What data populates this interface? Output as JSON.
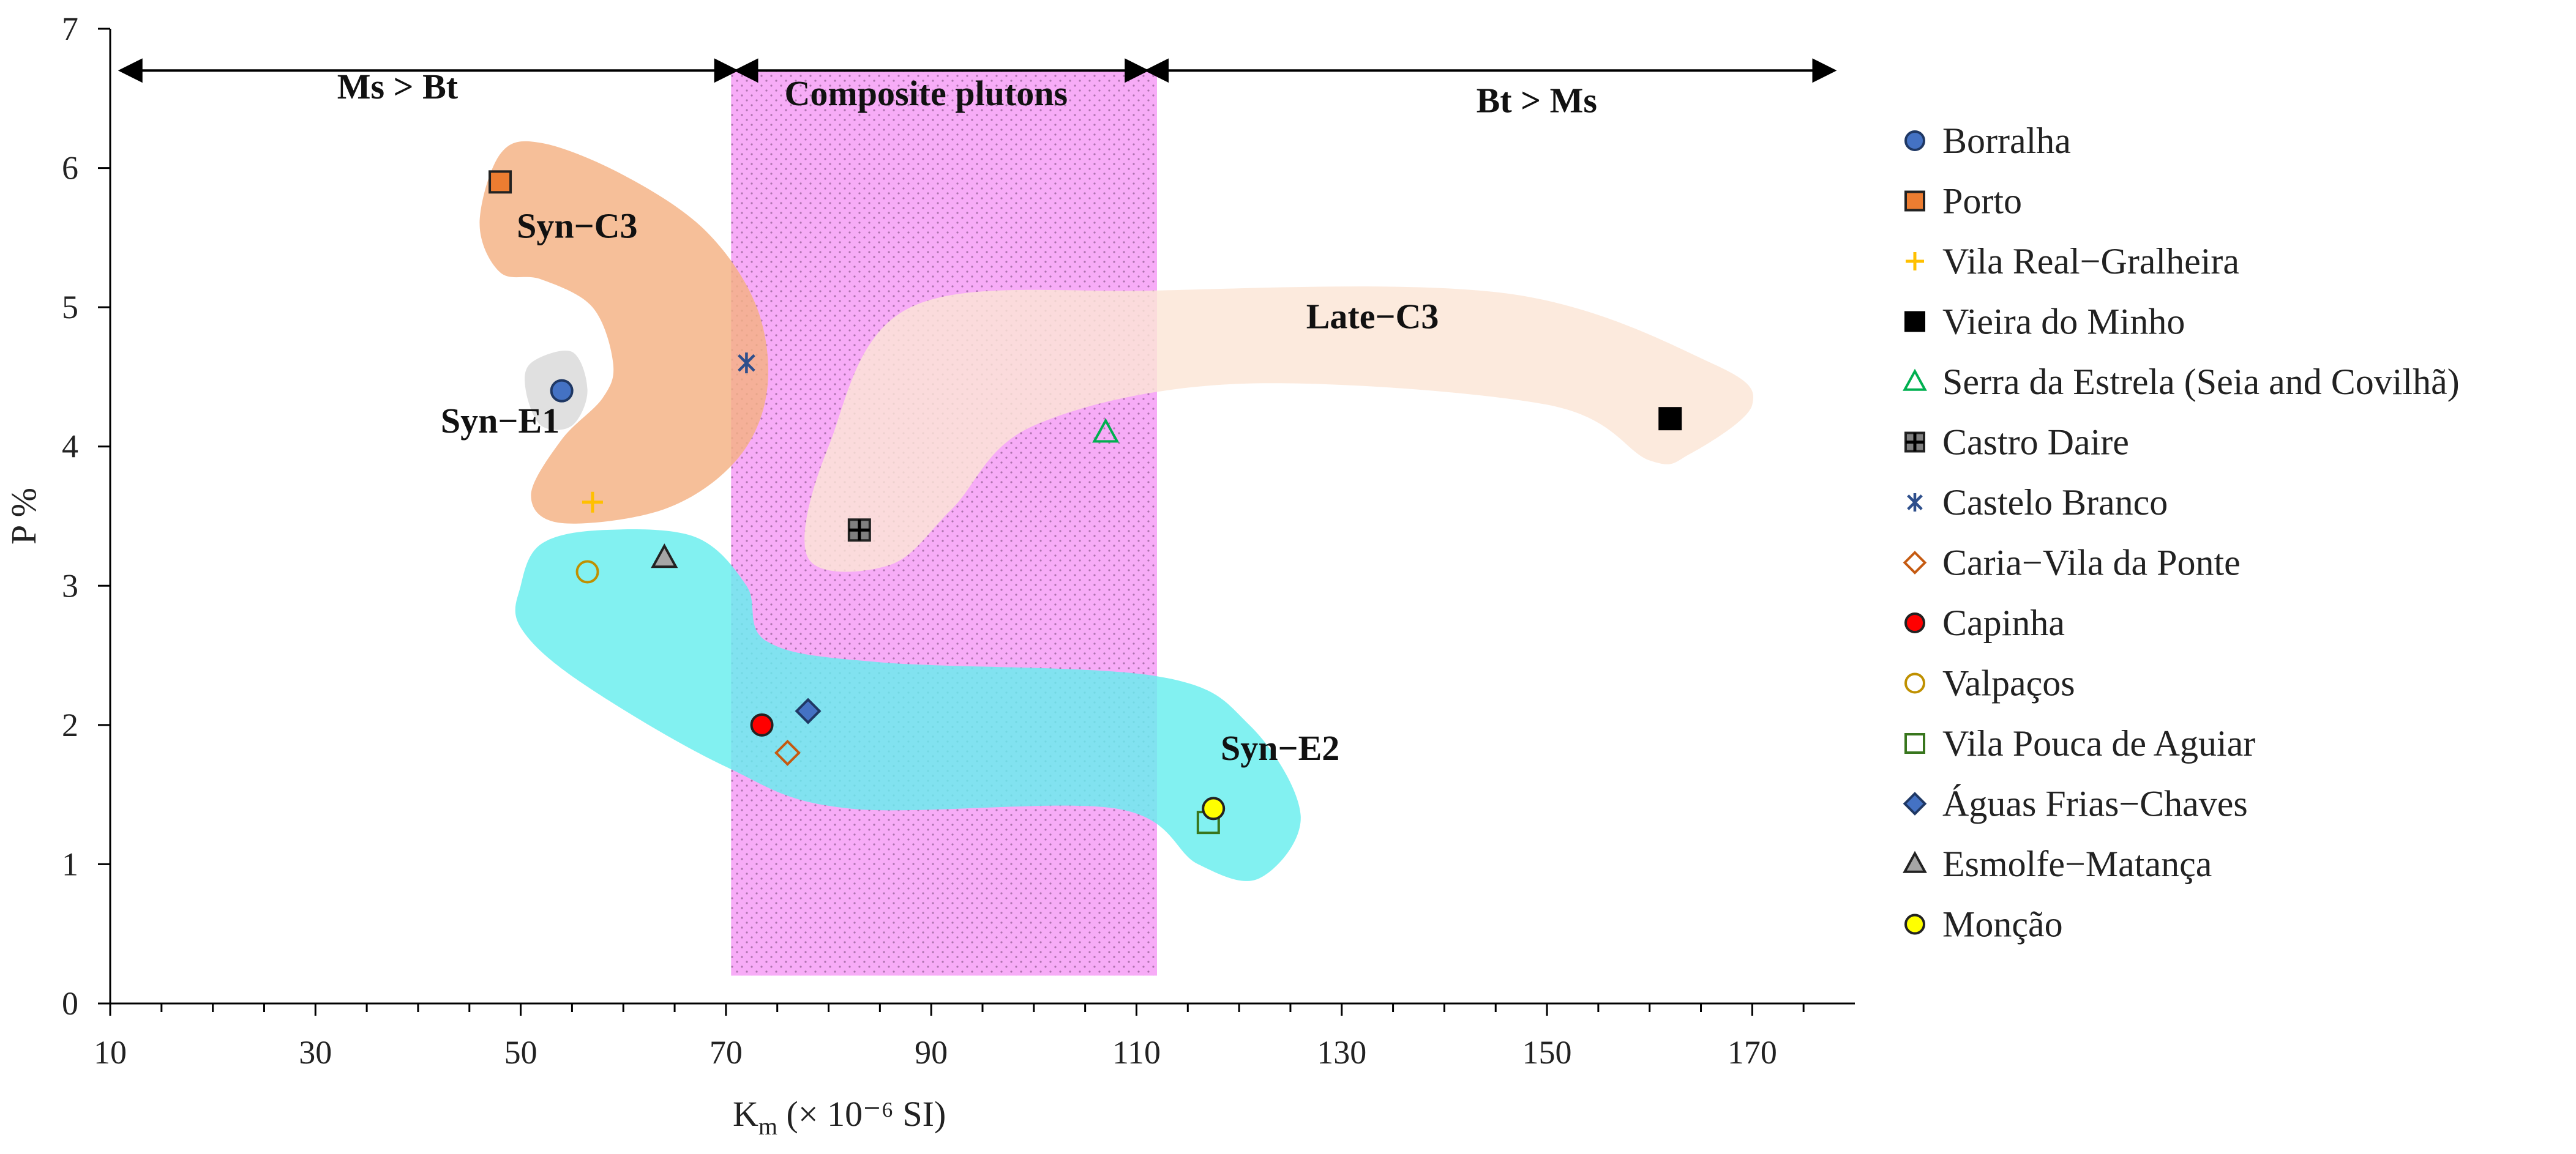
{
  "chart_data": {
    "type": "scatter",
    "title": "",
    "xlabel": {
      "main": "K",
      "sub": "m",
      "rest": " (× 10⁻⁶ SI)"
    },
    "ylabel": "P %",
    "xlim": [
      10,
      180
    ],
    "ylim": [
      0,
      7
    ],
    "x_ticks": [
      10,
      30,
      50,
      70,
      90,
      110,
      130,
      150,
      170
    ],
    "y_ticks": [
      0,
      1,
      2,
      3,
      4,
      5,
      6,
      7
    ],
    "grid": false,
    "legend_position": "right",
    "range_annotations": [
      {
        "label": "Ms > Bt",
        "from": 11,
        "to": 71,
        "label_x": 38,
        "label_y": 6.5
      },
      {
        "label": "Composite plutons",
        "from": 71,
        "to": 111,
        "label_x": 89.5,
        "label_y": 6.45
      },
      {
        "label": "Bt > Ms",
        "from": 111,
        "to": 178,
        "label_x": 149,
        "label_y": 6.4
      }
    ],
    "band": {
      "label": "Composite plutons",
      "from": 70.5,
      "to": 112,
      "ymin": 0.2,
      "ymax": 6.7,
      "color": "#f5a9f5"
    },
    "regions": [
      {
        "name": "Syn−C3",
        "label_x": 55.5,
        "label_y": 5.5,
        "color": "#f4b183",
        "outline": [
          [
            46,
            5.6
          ],
          [
            48,
            6.1
          ],
          [
            52,
            6.18
          ],
          [
            60,
            5.95
          ],
          [
            68,
            5.55
          ],
          [
            73,
            5.0
          ],
          [
            74,
            4.4
          ],
          [
            71,
            3.9
          ],
          [
            64,
            3.55
          ],
          [
            54,
            3.45
          ],
          [
            51,
            3.65
          ],
          [
            54,
            4.05
          ],
          [
            58,
            4.35
          ],
          [
            59,
            4.6
          ],
          [
            57,
            5.0
          ],
          [
            52,
            5.2
          ],
          [
            48,
            5.25
          ]
        ]
      },
      {
        "name": "Syn−E1",
        "label_x": 48,
        "label_y": 4.1,
        "color": "#d9d9d9",
        "outline": [
          [
            51,
            4.6
          ],
          [
            55,
            4.68
          ],
          [
            56.5,
            4.4
          ],
          [
            55,
            4.15
          ],
          [
            52,
            4.15
          ],
          [
            50.5,
            4.4
          ]
        ]
      },
      {
        "name": "Late−C3",
        "label_x": 133,
        "label_y": 4.85,
        "color": "#fbe5d6",
        "outline": [
          [
            88,
            5.0
          ],
          [
            112,
            5.12
          ],
          [
            146,
            5.1
          ],
          [
            166,
            4.6
          ],
          [
            170,
            4.3
          ],
          [
            164,
            3.95
          ],
          [
            160,
            3.9
          ],
          [
            150,
            4.3
          ],
          [
            120,
            4.45
          ],
          [
            100,
            4.15
          ],
          [
            92,
            3.55
          ],
          [
            86,
            3.15
          ],
          [
            78,
            3.2
          ],
          [
            80,
            4.0
          ]
        ]
      },
      {
        "name": "Syn−E2",
        "label_x": 124,
        "label_y": 1.75,
        "color": "#66eeee",
        "outline": [
          [
            52,
            3.3
          ],
          [
            58,
            3.4
          ],
          [
            67,
            3.35
          ],
          [
            72,
            3.0
          ],
          [
            74,
            2.6
          ],
          [
            85,
            2.45
          ],
          [
            112,
            2.35
          ],
          [
            121,
            2.0
          ],
          [
            126,
            1.35
          ],
          [
            122,
            0.9
          ],
          [
            116,
            1.0
          ],
          [
            108,
            1.4
          ],
          [
            82,
            1.4
          ],
          [
            70,
            1.7
          ],
          [
            56,
            2.3
          ],
          [
            50,
            2.7
          ],
          [
            50,
            3.0
          ]
        ]
      }
    ],
    "series": [
      {
        "name": "Borralha",
        "marker": "circle",
        "fill": "#4472c4",
        "stroke": "#1f3864",
        "points": [
          [
            54,
            4.4
          ]
        ]
      },
      {
        "name": "Porto",
        "marker": "square",
        "fill": "#ed7d31",
        "stroke": "#222222",
        "points": [
          [
            48,
            5.9
          ]
        ]
      },
      {
        "name": "Vila Real−Gralheira",
        "marker": "plus",
        "fill": "none",
        "stroke": "#ffc000",
        "points": [
          [
            57,
            3.6
          ]
        ]
      },
      {
        "name": "Vieira do Minho",
        "marker": "square",
        "fill": "#000000",
        "stroke": "#000000",
        "points": [
          [
            162,
            4.2
          ]
        ]
      },
      {
        "name": "Serra da Estrela (Seia and Covilhã)",
        "marker": "triangle",
        "fill": "none",
        "stroke": "#00b050",
        "points": [
          [
            107,
            4.1
          ]
        ]
      },
      {
        "name": "Castro Daire",
        "marker": "square-plus",
        "fill": "#808080",
        "stroke": "#222222",
        "points": [
          [
            83,
            3.4
          ]
        ]
      },
      {
        "name": "Castelo Branco",
        "marker": "asterisk",
        "fill": "none",
        "stroke": "#2e4f8c",
        "points": [
          [
            72,
            4.6
          ]
        ]
      },
      {
        "name": "Caria−Vila da Ponte",
        "marker": "diamond",
        "fill": "none",
        "stroke": "#c55a11",
        "points": [
          [
            76,
            1.8
          ]
        ]
      },
      {
        "name": "Capinha",
        "marker": "circle",
        "fill": "#ff0000",
        "stroke": "#222222",
        "points": [
          [
            73.5,
            2.0
          ]
        ]
      },
      {
        "name": "Valpaços",
        "marker": "circle",
        "fill": "none",
        "stroke": "#bf9000",
        "points": [
          [
            56.5,
            3.1
          ]
        ]
      },
      {
        "name": "Vila Pouca de Aguiar",
        "marker": "square",
        "fill": "none",
        "stroke": "#38761d",
        "points": [
          [
            117,
            1.3
          ]
        ]
      },
      {
        "name": "Águas Frias−Chaves",
        "marker": "diamond",
        "fill": "#4472c4",
        "stroke": "#1f3864",
        "points": [
          [
            78,
            2.1
          ]
        ]
      },
      {
        "name": "Esmolfe−Matança",
        "marker": "triangle",
        "fill": "#a6a6a6",
        "stroke": "#222222",
        "points": [
          [
            64,
            3.2
          ]
        ]
      },
      {
        "name": "Monção",
        "marker": "circle",
        "fill": "#ffff00",
        "stroke": "#222222",
        "points": [
          [
            117.5,
            1.4
          ]
        ]
      }
    ]
  }
}
